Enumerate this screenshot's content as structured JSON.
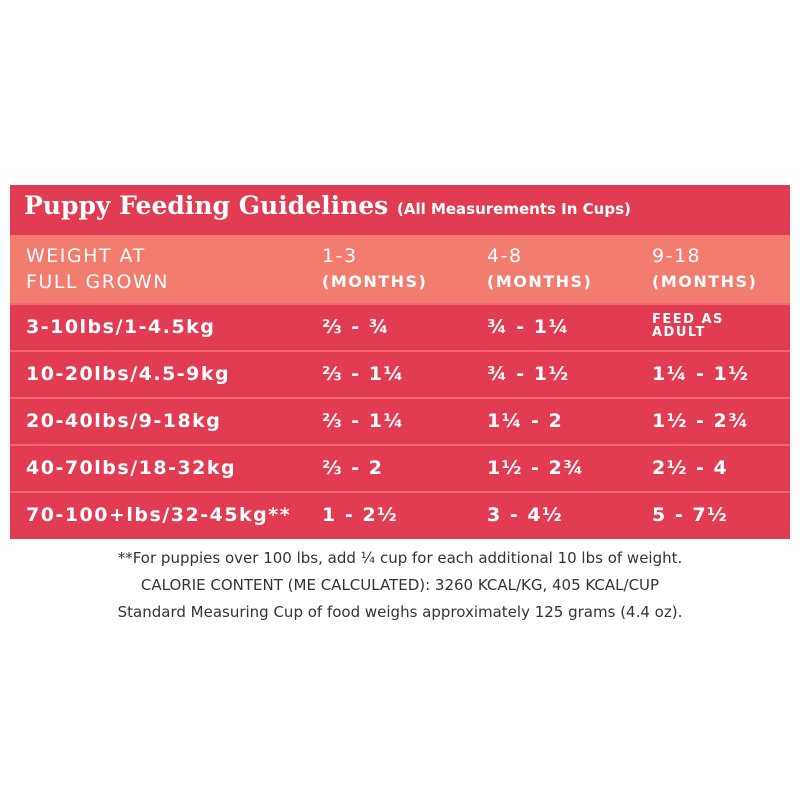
{
  "title": "Puppy Feeding Guidelines",
  "subtitle": "(All Measurements In Cups)",
  "table": {
    "header": [
      [
        "WEIGHT AT",
        "FULL GROWN"
      ],
      [
        "1-3",
        "(MONTHS)"
      ],
      [
        "4-8",
        "(MONTHS)"
      ],
      [
        "9-18",
        "(MONTHS)"
      ]
    ],
    "rows": [
      [
        "3-10lbs/1-4.5kg",
        "⅔ -  ¾",
        "¾ - 1¼",
        "FEED AS ADULT"
      ],
      [
        "10-20lbs/4.5-9kg",
        "⅔ - 1¼",
        "¾ - 1½",
        "1¼ - 1½"
      ],
      [
        "20-40lbs/9-18kg",
        "⅔ - 1¼",
        "1¼ - 2",
        "1½ - 2¾"
      ],
      [
        "40-70lbs/18-32kg",
        "⅔ - 2",
        "1½ - 2¾",
        "2½ - 4"
      ],
      [
        "70-100+lbs/32-45kg**",
        "1 - 2½",
        "3 - 4½",
        "5 - 7½"
      ]
    ]
  },
  "notes": [
    "**For puppies over 100 lbs, add ¼ cup for each additional 10 lbs of weight.",
    "CALORIE CONTENT (ME CALCULATED): 3260 KCAL/KG, 405 KCAL/CUP",
    "Standard Measuring Cup of food weighs approximately 125 grams (4.4 oz)."
  ]
}
